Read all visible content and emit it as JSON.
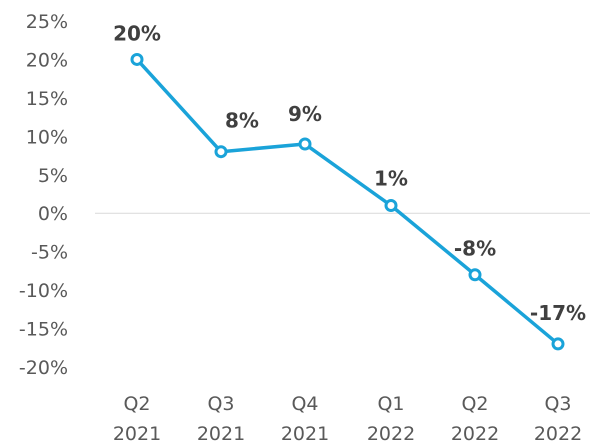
{
  "chart_data": {
    "type": "line",
    "title": "",
    "xlabel": "",
    "ylabel": "",
    "categories": [
      [
        "Q2",
        "2021"
      ],
      [
        "Q3",
        "2021"
      ],
      [
        "Q4",
        "2021"
      ],
      [
        "Q1",
        "2022"
      ],
      [
        "Q2",
        "2022"
      ],
      [
        "Q3",
        "2022"
      ]
    ],
    "series": [
      {
        "values": [
          20,
          8,
          9,
          1,
          -8,
          -17
        ],
        "labels": [
          "20%",
          "8%",
          "9%",
          "1%",
          "-8%",
          "-17%"
        ]
      }
    ],
    "yticks": [
      25,
      20,
      15,
      10,
      5,
      0,
      -5,
      -10,
      -15,
      -20
    ],
    "ytick_labels": [
      "25%",
      "20%",
      "15%",
      "10%",
      "5%",
      "0%",
      "-5%",
      "-10%",
      "-15%",
      "-20%"
    ],
    "ylim": [
      -20,
      25
    ],
    "grid": false,
    "zero_line": true,
    "legend": "none",
    "colors": {
      "line": "#1aa3d9",
      "marker_fill": "#ffffff",
      "data_label": "#404040",
      "tick_label": "#595959",
      "zero_line": "#d9d9d9"
    }
  }
}
